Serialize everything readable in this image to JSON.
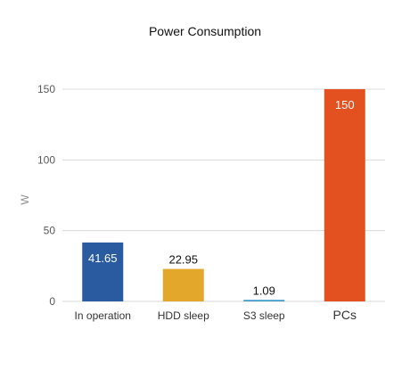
{
  "chart_data": {
    "type": "bar",
    "title": "Power Consumption",
    "ylabel": "W",
    "categories": [
      "In operation",
      "HDD sleep",
      "S3 sleep",
      "PCs"
    ],
    "values": [
      41.65,
      22.95,
      1.09,
      150
    ],
    "data_labels": [
      "41.65",
      "22.95",
      "1.09",
      "150"
    ],
    "bar_colors": [
      "#2a5aa0",
      "#e3a82b",
      "#3a9cc9",
      "#e2511f"
    ],
    "ylim": [
      0,
      150
    ],
    "yticks": [
      0,
      50,
      100,
      150
    ],
    "grid": true,
    "legend": "none"
  }
}
